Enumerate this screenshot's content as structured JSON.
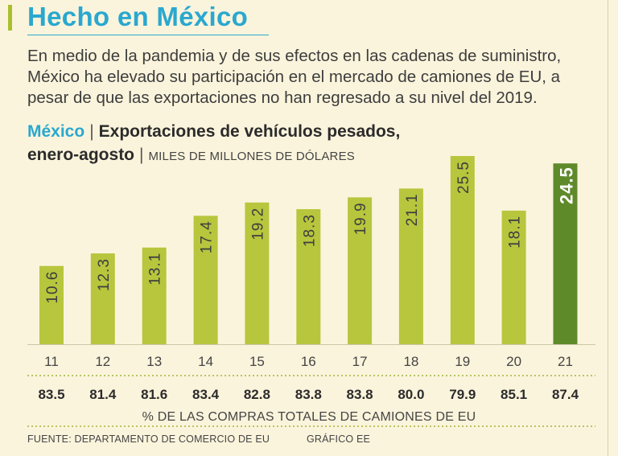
{
  "header": {
    "title": "Hecho en México",
    "intro": "En medio de la pandemia y de sus efectos en las cadenas de suministro, México ha elevado su participación en el mercado de camiones de EU, a pesar de que las exportaciones no han regresado a su nivel del 2019."
  },
  "chart_title": {
    "country": "México",
    "separator": "|",
    "line1": "Exportaciones de vehículos pesados,",
    "line2": "enero-agosto",
    "unit": "MILES DE MILLONES DE DÓLARES"
  },
  "colors": {
    "bar": "#b7c63d",
    "bar_highlight": "#5f8a2a",
    "title_blue": "#2aa8cf",
    "rule": "#9fb63a"
  },
  "chart_data": {
    "type": "bar",
    "title": "Exportaciones de vehículos pesados, enero-agosto",
    "ylabel": "Miles de millones de dólares",
    "xlabel": "",
    "categories": [
      "11",
      "12",
      "13",
      "14",
      "15",
      "16",
      "17",
      "18",
      "19",
      "20",
      "21"
    ],
    "values": [
      10.6,
      12.3,
      13.1,
      17.4,
      19.2,
      18.3,
      19.9,
      21.1,
      25.5,
      18.1,
      24.5
    ],
    "value_labels": [
      "10.6",
      "12.3",
      "13.1",
      "17.4",
      "19.2",
      "18.3",
      "19.9",
      "21.1",
      "25.5",
      "18.1",
      "24.5"
    ],
    "highlight_index": 10,
    "ylim": [
      0,
      25.5
    ],
    "secondary_row": {
      "label": "% DE LAS COMPRAS TOTALES DE CAMIONES DE EU",
      "values": [
        "83.5",
        "81.4",
        "81.6",
        "83.4",
        "82.8",
        "83.8",
        "83.8",
        "80.0",
        "79.9",
        "85.1",
        "87.4"
      ]
    }
  },
  "footer": {
    "source": "FUENTE: DEPARTAMENTO DE COMERCIO DE EU",
    "credit": "GRÁFICO EE"
  }
}
